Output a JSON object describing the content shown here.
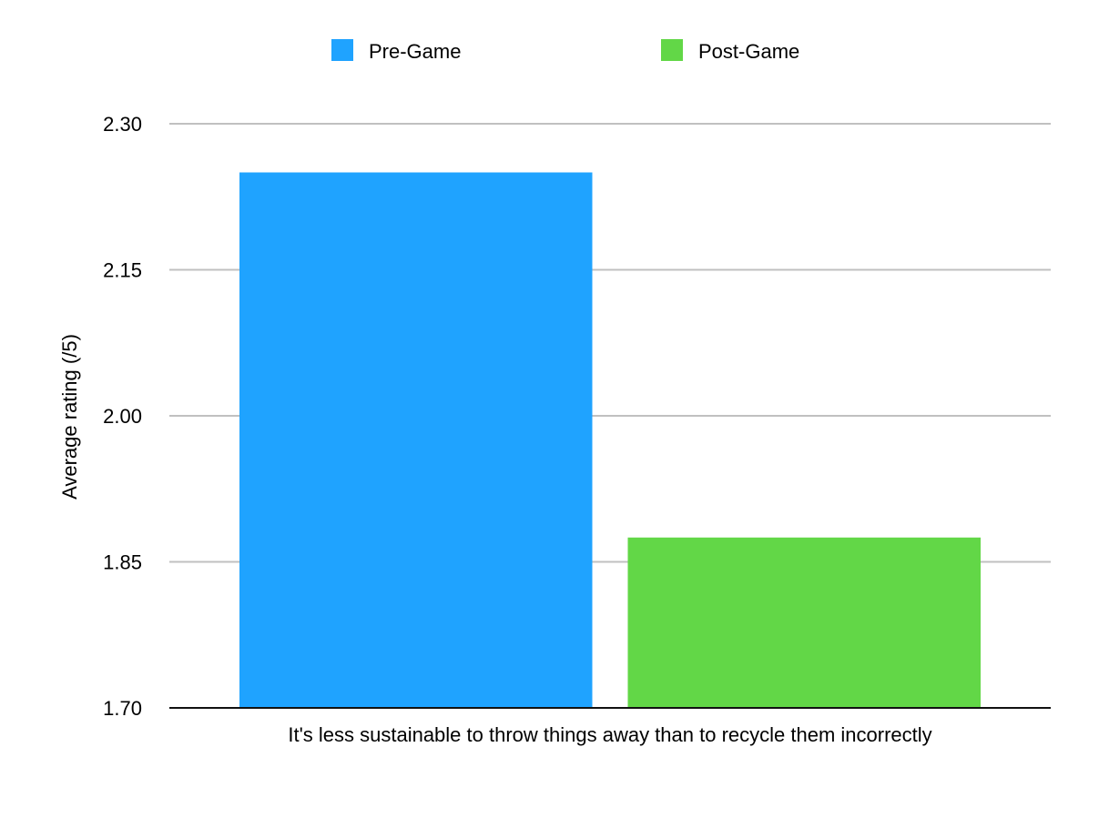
{
  "chart_data": {
    "type": "bar",
    "title": "",
    "categories": [
      "It's less sustainable to throw things away than to recycle them incorrectly"
    ],
    "series": [
      {
        "name": "Pre-Game",
        "color": "#1fa3ff",
        "values": [
          2.25
        ]
      },
      {
        "name": "Post-Game",
        "color": "#62d747",
        "values": [
          1.875
        ]
      }
    ],
    "xlabel": "",
    "ylabel": "Average rating (/5)",
    "ylim": [
      1.7,
      2.3
    ],
    "yticks": [
      "1.70",
      "1.85",
      "2.00",
      "2.15",
      "2.30"
    ],
    "grid": true,
    "legend": "top-center"
  }
}
